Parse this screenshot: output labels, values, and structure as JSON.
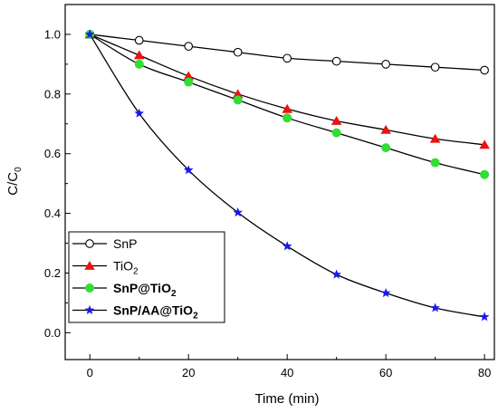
{
  "chart_data": {
    "type": "line",
    "title": "",
    "xlabel": "Time (min)",
    "ylabel": {
      "main": "C/C",
      "sub": "0"
    },
    "xlim": [
      -5,
      82
    ],
    "ylim": [
      -0.09,
      1.1
    ],
    "xticks": [
      0,
      20,
      40,
      60,
      80
    ],
    "xtick_labels": [
      "0",
      "20",
      "40",
      "60",
      "80"
    ],
    "yticks": [
      0.0,
      0.2,
      0.4,
      0.6,
      0.8,
      1.0
    ],
    "ytick_labels": [
      "0.0",
      "0.2",
      "0.4",
      "0.6",
      "0.8",
      "1.0"
    ],
    "grid": false,
    "legend_position": "bottom-left",
    "series": [
      {
        "name": "SnP",
        "label_main": "SnP",
        "label_sub": "",
        "label_after": "",
        "bold": false,
        "marker": "open-circle",
        "color": "#000000",
        "line_color": "#000000",
        "x": [
          0,
          10,
          20,
          30,
          40,
          50,
          60,
          70,
          80
        ],
        "y": [
          1.0,
          0.98,
          0.96,
          0.94,
          0.92,
          0.91,
          0.9,
          0.89,
          0.88
        ]
      },
      {
        "name": "TiO2",
        "label_main": "TiO",
        "label_sub": "2",
        "label_after": "",
        "bold": false,
        "marker": "triangle",
        "color": "#ee1111",
        "line_color": "#000000",
        "x": [
          0,
          10,
          20,
          30,
          40,
          50,
          60,
          70,
          80
        ],
        "y": [
          1.0,
          0.93,
          0.86,
          0.8,
          0.75,
          0.71,
          0.68,
          0.65,
          0.63
        ]
      },
      {
        "name": "SnP@TiO2",
        "label_main": "SnP@TiO",
        "label_sub": "2",
        "label_after": "",
        "bold": true,
        "marker": "circle",
        "color": "#33dd33",
        "line_color": "#000000",
        "x": [
          0,
          10,
          20,
          30,
          40,
          50,
          60,
          70,
          80
        ],
        "y": [
          1.0,
          0.9,
          0.84,
          0.78,
          0.72,
          0.67,
          0.62,
          0.57,
          0.53
        ]
      },
      {
        "name": "SnP/AA@TiO2",
        "label_main": "SnP/AA@TiO",
        "label_sub": "2",
        "label_after": "",
        "bold": true,
        "marker": "star",
        "color": "#1a1aee",
        "line_color": "#000000",
        "x": [
          0,
          10,
          20,
          30,
          40,
          50,
          60,
          70,
          80
        ],
        "y": [
          1.0,
          0.735,
          0.545,
          0.403,
          0.29,
          0.195,
          0.133,
          0.083,
          0.053
        ]
      }
    ]
  }
}
